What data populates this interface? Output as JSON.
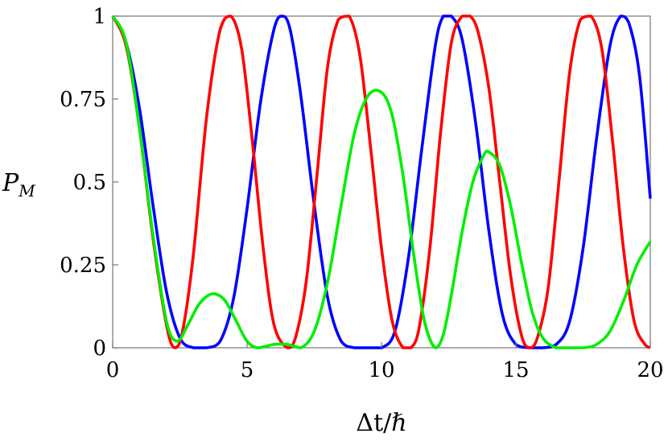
{
  "chart_data": {
    "type": "line",
    "title": "",
    "xlabel": "Δt/ℏ",
    "ylabel": "P_M",
    "xlim": [
      0,
      20
    ],
    "ylim": [
      0,
      1
    ],
    "x_ticks": [
      {
        "value": 0,
        "label": "0"
      },
      {
        "value": 5,
        "label": "5"
      },
      {
        "value": 10,
        "label": "10"
      },
      {
        "value": 15,
        "label": "15"
      },
      {
        "value": 20,
        "label": "20"
      }
    ],
    "y_ticks": [
      {
        "value": 0,
        "label": "0"
      },
      {
        "value": 0.25,
        "label": "0.25"
      },
      {
        "value": 0.5,
        "label": "0.5"
      },
      {
        "value": 0.75,
        "label": "0.75"
      },
      {
        "value": 1,
        "label": "1"
      }
    ],
    "grid": false,
    "legend": "none",
    "series": [
      {
        "color": "#0000ff",
        "x": [
          0,
          0.5,
          1.0,
          1.5,
          2.0,
          2.5,
          3.0,
          3.5,
          4.0,
          4.5,
          5.0,
          5.5,
          6.0,
          6.3,
          6.6,
          7.0,
          7.5,
          8.0,
          8.5,
          9.0,
          9.5,
          10.0,
          10.5,
          11.0,
          11.5,
          12.0,
          12.3,
          12.6,
          13.0,
          13.5,
          14.0,
          14.5,
          15.0,
          15.5,
          16.0,
          16.5,
          17.0,
          17.5,
          18.0,
          18.5,
          18.9,
          19.2,
          19.6,
          20.0
        ],
        "y": [
          1.0,
          0.92,
          0.72,
          0.43,
          0.17,
          0.03,
          0.0,
          0.0,
          0.02,
          0.15,
          0.42,
          0.74,
          0.96,
          1.0,
          0.96,
          0.76,
          0.43,
          0.15,
          0.02,
          0.0,
          0.0,
          0.0,
          0.05,
          0.27,
          0.6,
          0.91,
          1.0,
          1.0,
          0.93,
          0.68,
          0.35,
          0.1,
          0.01,
          0.0,
          0.0,
          0.01,
          0.08,
          0.3,
          0.63,
          0.91,
          1.0,
          0.98,
          0.82,
          0.45
        ]
      },
      {
        "color": "#ff0000",
        "x": [
          0,
          0.5,
          1.0,
          1.5,
          2.0,
          2.3,
          2.6,
          3.0,
          3.5,
          4.0,
          4.4,
          4.8,
          5.2,
          5.6,
          6.0,
          6.5,
          6.8,
          7.2,
          7.6,
          8.0,
          8.4,
          8.8,
          9.2,
          9.6,
          10.0,
          10.4,
          10.8,
          11.1,
          11.4,
          11.8,
          12.2,
          12.6,
          13.0,
          13.3,
          13.6,
          14.0,
          14.4,
          14.8,
          15.2,
          15.5,
          15.8,
          16.2,
          16.6,
          17.0,
          17.4,
          17.8,
          18.2,
          18.6,
          19.0,
          19.4,
          19.8,
          20.0
        ],
        "y": [
          1.0,
          0.91,
          0.66,
          0.33,
          0.07,
          0.0,
          0.05,
          0.28,
          0.7,
          0.96,
          1.0,
          0.9,
          0.62,
          0.3,
          0.07,
          0.0,
          0.03,
          0.2,
          0.52,
          0.85,
          0.99,
          1.0,
          0.88,
          0.6,
          0.3,
          0.08,
          0.0,
          0.0,
          0.06,
          0.3,
          0.65,
          0.92,
          1.0,
          1.0,
          0.95,
          0.78,
          0.5,
          0.22,
          0.04,
          0.0,
          0.03,
          0.18,
          0.5,
          0.83,
          0.99,
          1.0,
          0.9,
          0.62,
          0.3,
          0.08,
          0.01,
          0.0
        ]
      },
      {
        "color": "#00ee00",
        "x": [
          0,
          0.5,
          1.0,
          1.5,
          2.0,
          2.4,
          2.8,
          3.2,
          3.6,
          3.9,
          4.2,
          4.6,
          5.0,
          5.4,
          6.0,
          6.5,
          7.0,
          7.5,
          8.0,
          8.5,
          9.0,
          9.5,
          10.0,
          10.4,
          10.8,
          11.2,
          11.6,
          12.0,
          12.3,
          12.6,
          13.0,
          13.4,
          13.8,
          14.0,
          14.4,
          14.8,
          15.2,
          15.6,
          16.0,
          16.5,
          17.0,
          17.5,
          18.0,
          18.5,
          19.0,
          19.5,
          20.0
        ],
        "y": [
          1.0,
          0.92,
          0.66,
          0.34,
          0.08,
          0.02,
          0.07,
          0.13,
          0.16,
          0.16,
          0.14,
          0.08,
          0.02,
          0.0,
          0.01,
          0.01,
          0.0,
          0.05,
          0.2,
          0.43,
          0.65,
          0.76,
          0.77,
          0.7,
          0.52,
          0.28,
          0.08,
          0.0,
          0.04,
          0.16,
          0.35,
          0.5,
          0.58,
          0.59,
          0.55,
          0.43,
          0.26,
          0.11,
          0.03,
          0.0,
          0.0,
          0.0,
          0.01,
          0.05,
          0.14,
          0.25,
          0.32
        ]
      }
    ]
  }
}
